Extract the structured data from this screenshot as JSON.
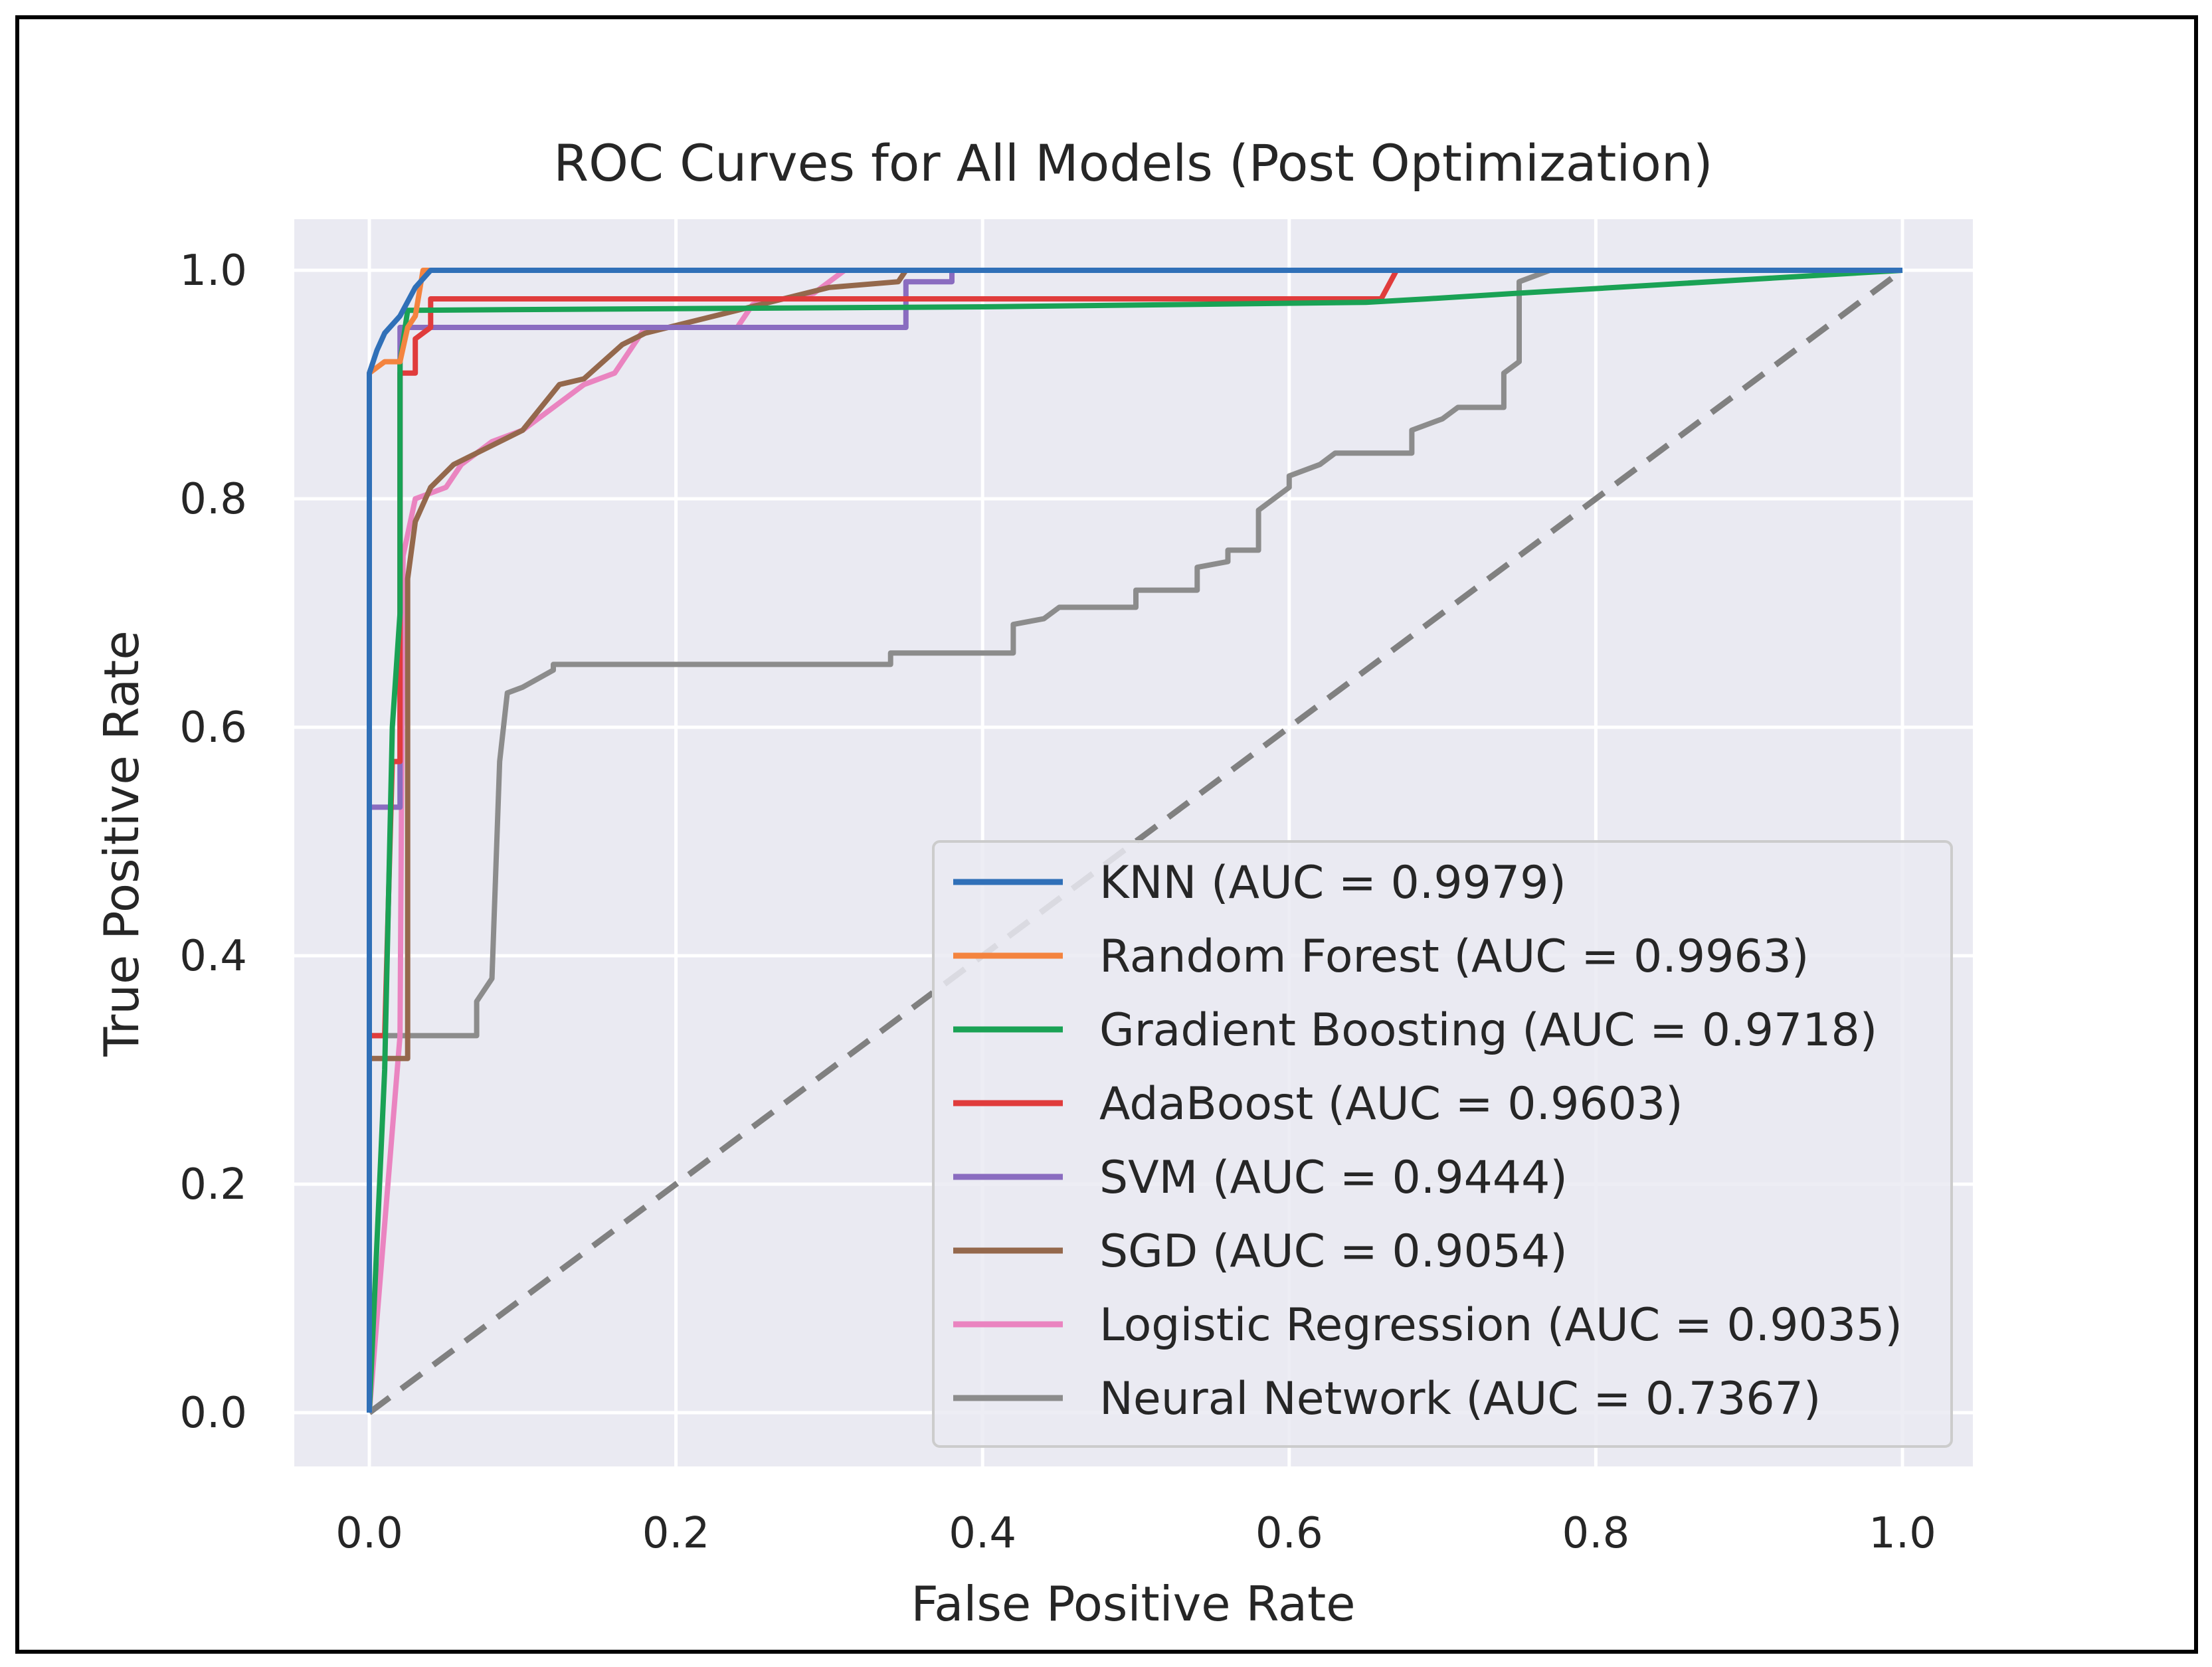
{
  "chart_data": {
    "type": "line",
    "title": "ROC Curves for All Models (Post Optimization)",
    "xlabel": "False Positive Rate",
    "ylabel": "True Positive Rate",
    "xlim": [
      -0.05,
      1.05
    ],
    "ylim": [
      -0.045,
      1.045
    ],
    "xticks": [
      "0.0",
      "0.2",
      "0.4",
      "0.6",
      "0.8",
      "1.0"
    ],
    "yticks": [
      "0.0",
      "0.2",
      "0.4",
      "0.6",
      "0.8",
      "1.0"
    ],
    "grid": true,
    "legend_position": "lower-right",
    "background": "#eaeaf2",
    "diagonal": {
      "x": [
        0,
        1
      ],
      "y": [
        0,
        1
      ],
      "style": "dashed",
      "color": "#808080"
    },
    "series": [
      {
        "name": "KNN (AUC = 0.9979)",
        "color": "#3070b8",
        "x": [
          0,
          0,
          0.005,
          0.01,
          0.02,
          0.03,
          0.04,
          1
        ],
        "y": [
          0,
          0.91,
          0.93,
          0.945,
          0.96,
          0.985,
          1.0,
          1.0
        ]
      },
      {
        "name": "Random Forest (AUC = 0.9963)",
        "color": "#f4843f",
        "x": [
          0,
          0,
          0.01,
          0.02,
          0.025,
          0.03,
          0.035,
          1
        ],
        "y": [
          0,
          0.91,
          0.92,
          0.92,
          0.95,
          0.96,
          1.0,
          1.0
        ]
      },
      {
        "name": "Gradient Boosting (AUC = 0.9718)",
        "color": "#1aa255",
        "x": [
          0,
          0.01,
          0.015,
          0.02,
          0.02,
          0.025,
          0.4,
          0.65,
          0.69,
          0.75,
          1
        ],
        "y": [
          0,
          0.3,
          0.6,
          0.7,
          0.92,
          0.965,
          0.968,
          0.972,
          0.975,
          0.98,
          1.0
        ]
      },
      {
        "name": "AdaBoost (AUC = 0.9603)",
        "color": "#e03c3c",
        "x": [
          0,
          0,
          0.01,
          0.015,
          0.02,
          0.02,
          0.03,
          0.03,
          0.04,
          0.04,
          0.66,
          0.67,
          1
        ],
        "y": [
          0,
          0.33,
          0.33,
          0.57,
          0.57,
          0.91,
          0.91,
          0.94,
          0.95,
          0.975,
          0.975,
          1.0,
          1.0
        ]
      },
      {
        "name": "SVM (AUC = 0.9444)",
        "color": "#8a6cc0",
        "x": [
          0,
          0,
          0,
          0.02,
          0.02,
          0.35,
          0.35,
          0.38,
          0.38,
          1
        ],
        "y": [
          0,
          0.33,
          0.53,
          0.53,
          0.95,
          0.95,
          0.99,
          0.99,
          1.0,
          1.0
        ]
      },
      {
        "name": "SGD (AUC = 0.9054)",
        "color": "#94684c",
        "x": [
          0,
          0,
          0.025,
          0.025,
          0.03,
          0.04,
          0.055,
          0.07,
          0.1,
          0.124,
          0.14,
          0.165,
          0.18,
          0.24,
          0.3,
          0.345,
          0.35,
          1
        ],
        "y": [
          0,
          0.31,
          0.31,
          0.73,
          0.78,
          0.81,
          0.83,
          0.84,
          0.86,
          0.9,
          0.905,
          0.935,
          0.945,
          0.965,
          0.985,
          0.99,
          1.0,
          1.0
        ]
      },
      {
        "name": "Logistic Regression (AUC = 0.9035)",
        "color": "#ea84c0",
        "x": [
          0,
          0.02,
          0.022,
          0.03,
          0.05,
          0.06,
          0.08,
          0.1,
          0.12,
          0.14,
          0.16,
          0.17,
          0.18,
          0.24,
          0.25,
          0.29,
          0.31,
          1
        ],
        "y": [
          0,
          0.33,
          0.75,
          0.8,
          0.81,
          0.83,
          0.85,
          0.86,
          0.88,
          0.9,
          0.91,
          0.93,
          0.95,
          0.95,
          0.97,
          0.98,
          1.0,
          1.0
        ]
      },
      {
        "name": "Neural Network (AUC = 0.7367)",
        "color": "#8c8c8c",
        "x": [
          0,
          0,
          0.07,
          0.07,
          0.08,
          0.085,
          0.09,
          0.1,
          0.12,
          0.12,
          0.34,
          0.34,
          0.42,
          0.42,
          0.44,
          0.45,
          0.5,
          0.5,
          0.54,
          0.54,
          0.56,
          0.56,
          0.58,
          0.58,
          0.6,
          0.6,
          0.62,
          0.63,
          0.68,
          0.68,
          0.7,
          0.71,
          0.74,
          0.74,
          0.75,
          0.75,
          0.77,
          1
        ],
        "y": [
          0,
          0.33,
          0.33,
          0.36,
          0.38,
          0.57,
          0.63,
          0.635,
          0.65,
          0.655,
          0.655,
          0.665,
          0.665,
          0.69,
          0.695,
          0.705,
          0.705,
          0.72,
          0.72,
          0.74,
          0.745,
          0.755,
          0.755,
          0.79,
          0.81,
          0.82,
          0.83,
          0.84,
          0.84,
          0.86,
          0.87,
          0.88,
          0.88,
          0.91,
          0.92,
          0.99,
          1.0,
          1.0
        ]
      }
    ]
  }
}
